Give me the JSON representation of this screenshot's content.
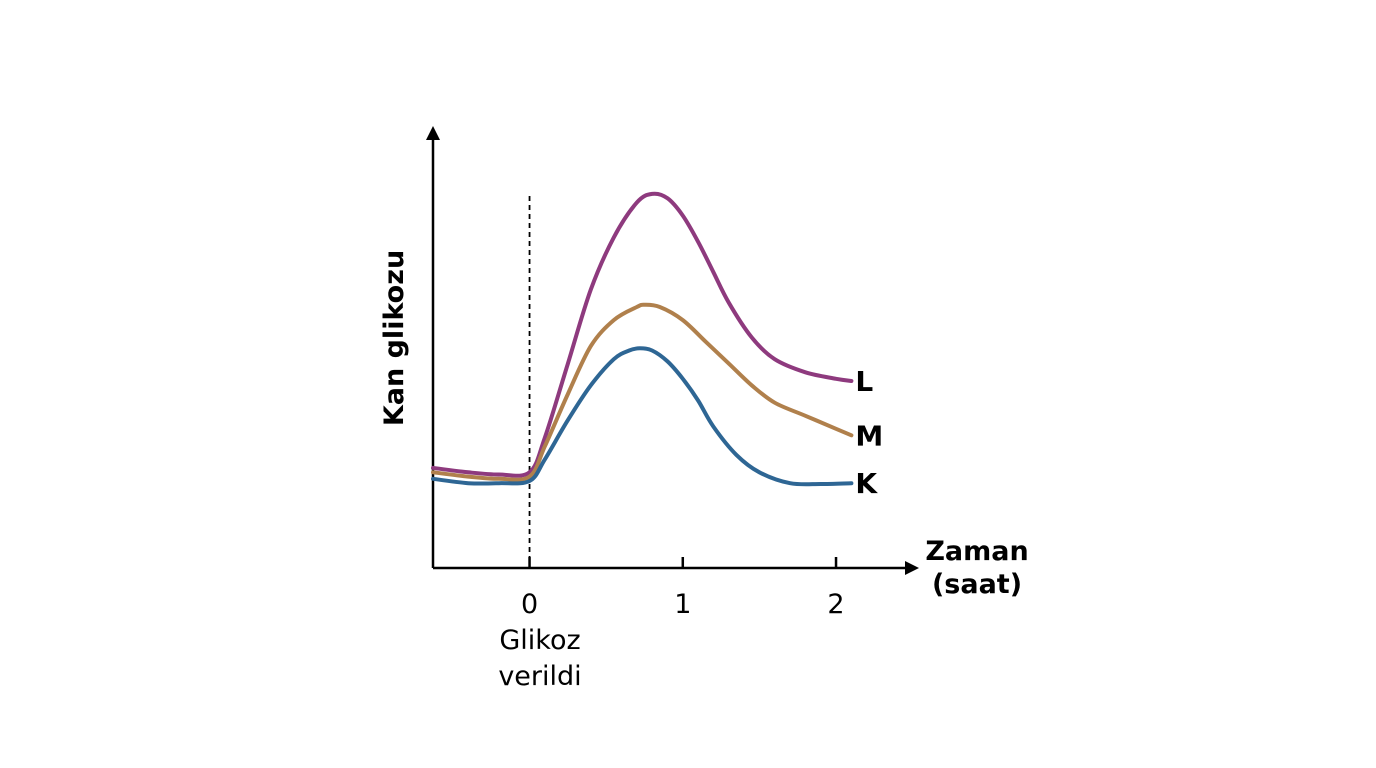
{
  "chart_data": {
    "type": "line",
    "xlabel": "Zaman",
    "xlabel_unit": "(saat)",
    "ylabel": "Kan glikozu",
    "x_ticks": [
      "0",
      "1",
      "2"
    ],
    "xlim": [
      -0.63,
      2.3
    ],
    "ylim": [
      0,
      100
    ],
    "y_ticks_shown": false,
    "annotation": {
      "x": 0,
      "line_style": "dashed",
      "lines": [
        "Glikoz",
        "verildi"
      ]
    },
    "series": [
      {
        "name": "L",
        "color": "#8e3a7e",
        "x": [
          -0.63,
          -0.4,
          -0.2,
          0,
          0.1,
          0.25,
          0.4,
          0.55,
          0.7,
          0.8,
          0.9,
          1.0,
          1.1,
          1.2,
          1.3,
          1.45,
          1.6,
          1.8,
          2.0,
          2.1
        ],
        "y": [
          23,
          22,
          21.5,
          22,
          30,
          47,
          64,
          76,
          84,
          86,
          85,
          81,
          75,
          68,
          61,
          53,
          48,
          45,
          43.5,
          43
        ]
      },
      {
        "name": "M",
        "color": "#b0804c",
        "x": [
          -0.63,
          -0.4,
          -0.2,
          0,
          0.1,
          0.25,
          0.4,
          0.55,
          0.7,
          0.75,
          0.85,
          1.0,
          1.15,
          1.3,
          1.45,
          1.6,
          1.8,
          2.0,
          2.1
        ],
        "y": [
          22,
          21,
          20.5,
          21,
          28,
          40,
          51,
          57,
          60,
          60.5,
          60,
          57,
          52,
          47,
          42,
          38,
          35,
          32,
          30.5
        ]
      },
      {
        "name": "K",
        "color": "#2e6694",
        "x": [
          -0.63,
          -0.4,
          -0.2,
          0,
          0.1,
          0.25,
          0.4,
          0.55,
          0.65,
          0.72,
          0.8,
          0.9,
          1.0,
          1.1,
          1.2,
          1.35,
          1.5,
          1.7,
          1.9,
          2.1
        ],
        "y": [
          20.5,
          19.5,
          19.5,
          20,
          25,
          34,
          42,
          48,
          50,
          50.5,
          50,
          47.5,
          43.5,
          38.5,
          32.5,
          26,
          22,
          19.5,
          19.3,
          19.5
        ]
      }
    ]
  }
}
